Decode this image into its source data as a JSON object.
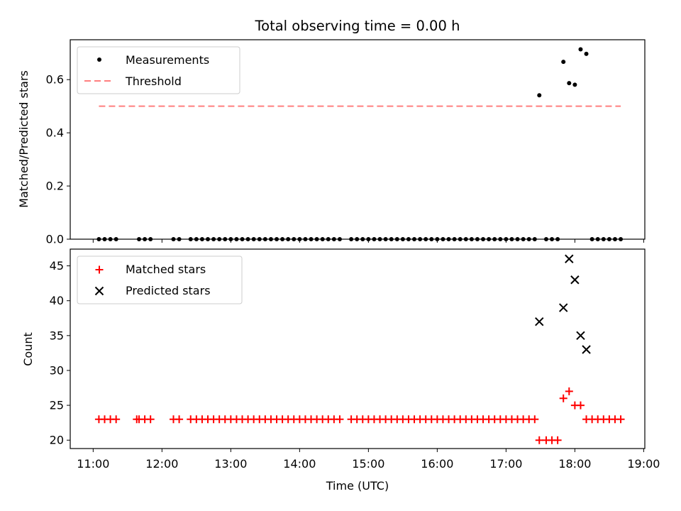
{
  "chart_data": [
    {
      "type": "scatter",
      "title": "Total observing time = 0.00 h",
      "xlabel": "",
      "ylabel": "Matched/Predicted stars",
      "xlim": [
        "10:40",
        "19:01"
      ],
      "ylim": [
        0.0,
        0.75
      ],
      "yticks": [
        "0.0",
        "0.2",
        "0.4",
        "0.6"
      ],
      "xticks": [
        "11:00",
        "12:00",
        "13:00",
        "14:00",
        "15:00",
        "16:00",
        "17:00",
        "18:00",
        "19:00"
      ],
      "legend_position": "upper-left",
      "threshold": {
        "name": "Threshold",
        "value": 0.5,
        "x_start": "11:05",
        "x_end": "18:40",
        "color": "#ff7f7f",
        "style": "dashed"
      },
      "series": [
        {
          "name": "Measurements",
          "color": "#000000",
          "marker": "dot",
          "points": [
            [
              "11:05",
              0
            ],
            [
              "11:10",
              0
            ],
            [
              "11:15",
              0
            ],
            [
              "11:20",
              0
            ],
            [
              "11:40",
              0
            ],
            [
              "11:45",
              0
            ],
            [
              "11:50",
              0
            ],
            [
              "12:10",
              0
            ],
            [
              "12:15",
              0
            ],
            [
              "12:25",
              0
            ],
            [
              "12:30",
              0
            ],
            [
              "12:35",
              0
            ],
            [
              "12:40",
              0
            ],
            [
              "12:45",
              0
            ],
            [
              "12:50",
              0
            ],
            [
              "12:55",
              0
            ],
            [
              "13:00",
              0
            ],
            [
              "13:05",
              0
            ],
            [
              "13:10",
              0
            ],
            [
              "13:15",
              0
            ],
            [
              "13:20",
              0
            ],
            [
              "13:25",
              0
            ],
            [
              "13:30",
              0
            ],
            [
              "13:35",
              0
            ],
            [
              "13:40",
              0
            ],
            [
              "13:45",
              0
            ],
            [
              "13:50",
              0
            ],
            [
              "13:55",
              0
            ],
            [
              "14:00",
              0
            ],
            [
              "14:05",
              0
            ],
            [
              "14:10",
              0
            ],
            [
              "14:15",
              0
            ],
            [
              "14:20",
              0
            ],
            [
              "14:25",
              0
            ],
            [
              "14:30",
              0
            ],
            [
              "14:35",
              0
            ],
            [
              "14:45",
              0
            ],
            [
              "14:50",
              0
            ],
            [
              "14:55",
              0
            ],
            [
              "15:00",
              0
            ],
            [
              "15:05",
              0
            ],
            [
              "15:10",
              0
            ],
            [
              "15:15",
              0
            ],
            [
              "15:20",
              0
            ],
            [
              "15:25",
              0
            ],
            [
              "15:30",
              0
            ],
            [
              "15:35",
              0
            ],
            [
              "15:40",
              0
            ],
            [
              "15:45",
              0
            ],
            [
              "15:50",
              0
            ],
            [
              "15:55",
              0
            ],
            [
              "16:00",
              0
            ],
            [
              "16:05",
              0
            ],
            [
              "16:10",
              0
            ],
            [
              "16:15",
              0
            ],
            [
              "16:20",
              0
            ],
            [
              "16:25",
              0
            ],
            [
              "16:30",
              0
            ],
            [
              "16:35",
              0
            ],
            [
              "16:40",
              0
            ],
            [
              "16:45",
              0
            ],
            [
              "16:50",
              0
            ],
            [
              "16:55",
              0
            ],
            [
              "17:00",
              0
            ],
            [
              "17:05",
              0
            ],
            [
              "17:10",
              0
            ],
            [
              "17:15",
              0
            ],
            [
              "17:20",
              0
            ],
            [
              "17:25",
              0
            ],
            [
              "17:35",
              0
            ],
            [
              "17:40",
              0
            ],
            [
              "17:45",
              0
            ],
            [
              "17:29",
              0.541
            ],
            [
              "17:50",
              0.667
            ],
            [
              "17:55",
              0.587
            ],
            [
              "18:00",
              0.581
            ],
            [
              "18:05",
              0.714
            ],
            [
              "18:10",
              0.697
            ],
            [
              "18:15",
              0
            ],
            [
              "18:20",
              0
            ],
            [
              "18:25",
              0
            ],
            [
              "18:30",
              0
            ],
            [
              "18:35",
              0
            ],
            [
              "18:40",
              0
            ]
          ]
        }
      ]
    },
    {
      "type": "scatter",
      "title": "",
      "xlabel": "Time (UTC)",
      "ylabel": "Count",
      "xlim": [
        "10:40",
        "19:01"
      ],
      "ylim": [
        18.8,
        47.4
      ],
      "yticks": [
        "20",
        "25",
        "30",
        "35",
        "40",
        "45"
      ],
      "xticks": [
        "11:00",
        "12:00",
        "13:00",
        "14:00",
        "15:00",
        "16:00",
        "17:00",
        "18:00",
        "19:00"
      ],
      "legend_position": "upper-left",
      "series": [
        {
          "name": "Matched stars",
          "color": "#ff0000",
          "marker": "plus",
          "points": [
            [
              "11:05",
              23
            ],
            [
              "11:10",
              23
            ],
            [
              "11:15",
              23
            ],
            [
              "11:20",
              23
            ],
            [
              "11:38",
              23
            ],
            [
              "11:40",
              23
            ],
            [
              "11:45",
              23
            ],
            [
              "11:50",
              23
            ],
            [
              "12:10",
              23
            ],
            [
              "12:15",
              23
            ],
            [
              "12:25",
              23
            ],
            [
              "12:30",
              23
            ],
            [
              "12:35",
              23
            ],
            [
              "12:40",
              23
            ],
            [
              "12:45",
              23
            ],
            [
              "12:50",
              23
            ],
            [
              "12:55",
              23
            ],
            [
              "13:00",
              23
            ],
            [
              "13:05",
              23
            ],
            [
              "13:10",
              23
            ],
            [
              "13:15",
              23
            ],
            [
              "13:20",
              23
            ],
            [
              "13:25",
              23
            ],
            [
              "13:30",
              23
            ],
            [
              "13:35",
              23
            ],
            [
              "13:40",
              23
            ],
            [
              "13:45",
              23
            ],
            [
              "13:50",
              23
            ],
            [
              "13:55",
              23
            ],
            [
              "14:00",
              23
            ],
            [
              "14:05",
              23
            ],
            [
              "14:10",
              23
            ],
            [
              "14:15",
              23
            ],
            [
              "14:20",
              23
            ],
            [
              "14:25",
              23
            ],
            [
              "14:30",
              23
            ],
            [
              "14:35",
              23
            ],
            [
              "14:45",
              23
            ],
            [
              "14:50",
              23
            ],
            [
              "14:55",
              23
            ],
            [
              "15:00",
              23
            ],
            [
              "15:05",
              23
            ],
            [
              "15:10",
              23
            ],
            [
              "15:15",
              23
            ],
            [
              "15:20",
              23
            ],
            [
              "15:25",
              23
            ],
            [
              "15:30",
              23
            ],
            [
              "15:35",
              23
            ],
            [
              "15:40",
              23
            ],
            [
              "15:45",
              23
            ],
            [
              "15:50",
              23
            ],
            [
              "15:55",
              23
            ],
            [
              "16:00",
              23
            ],
            [
              "16:05",
              23
            ],
            [
              "16:10",
              23
            ],
            [
              "16:15",
              23
            ],
            [
              "16:20",
              23
            ],
            [
              "16:25",
              23
            ],
            [
              "16:30",
              23
            ],
            [
              "16:35",
              23
            ],
            [
              "16:40",
              23
            ],
            [
              "16:45",
              23
            ],
            [
              "16:50",
              23
            ],
            [
              "16:55",
              23
            ],
            [
              "17:00",
              23
            ],
            [
              "17:05",
              23
            ],
            [
              "17:10",
              23
            ],
            [
              "17:15",
              23
            ],
            [
              "17:20",
              23
            ],
            [
              "17:25",
              23
            ],
            [
              "17:29",
              20
            ],
            [
              "17:35",
              20
            ],
            [
              "17:40",
              20
            ],
            [
              "17:45",
              20
            ],
            [
              "17:50",
              26
            ],
            [
              "17:55",
              27
            ],
            [
              "18:00",
              25
            ],
            [
              "18:05",
              25
            ],
            [
              "18:10",
              23
            ],
            [
              "18:15",
              23
            ],
            [
              "18:20",
              23
            ],
            [
              "18:25",
              23
            ],
            [
              "18:30",
              23
            ],
            [
              "18:35",
              23
            ],
            [
              "18:40",
              23
            ]
          ]
        },
        {
          "name": "Predicted stars",
          "color": "#000000",
          "marker": "x",
          "points": [
            [
              "17:29",
              37
            ],
            [
              "17:50",
              39
            ],
            [
              "17:55",
              46
            ],
            [
              "18:00",
              43
            ],
            [
              "18:05",
              35
            ],
            [
              "18:10",
              33
            ]
          ]
        }
      ]
    }
  ]
}
